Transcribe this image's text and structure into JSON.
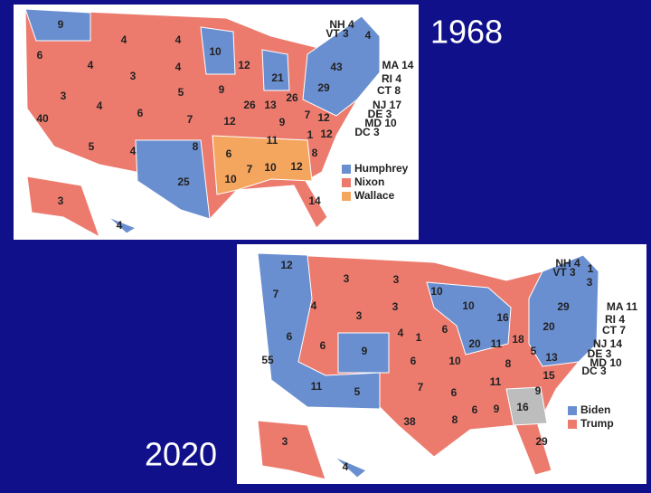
{
  "maps": [
    {
      "title": "1968",
      "legend": [
        {
          "name": "Humphrey",
          "color": "#6a8fd0"
        },
        {
          "name": "Nixon",
          "color": "#ec7b6e"
        },
        {
          "name": "Wallace",
          "color": "#f4a55e"
        }
      ],
      "state_labels": [
        9,
        4,
        4,
        10,
        6,
        4,
        4,
        12,
        3,
        21,
        43,
        4,
        "NH 4",
        "VT 3",
        "MA 14",
        "RI 4",
        "CT 8",
        "NJ 17",
        "DE 3",
        "MD 10",
        "DC 3",
        3,
        5,
        9,
        29,
        26,
        4,
        26,
        13,
        6,
        40,
        7,
        12,
        9,
        7,
        12,
        12,
        1,
        11,
        5,
        4,
        8,
        6,
        8,
        7,
        10,
        12,
        25,
        10,
        14,
        3,
        4
      ]
    },
    {
      "title": "2020",
      "legend": [
        {
          "name": "Biden",
          "color": "#6a8fd0"
        },
        {
          "name": "Trump",
          "color": "#ec7b6e"
        }
      ],
      "state_labels": [
        12,
        3,
        3,
        "NH 4",
        "VT 3",
        1,
        3,
        10,
        7,
        4,
        3,
        10,
        16,
        29,
        "MA 11",
        "RI 4",
        "CT 7",
        3,
        6,
        4,
        1,
        6,
        20,
        20,
        11,
        18,
        "NJ 14",
        "DE 3",
        "MD 10",
        "DC 3",
        6,
        9,
        5,
        13,
        55,
        6,
        10,
        8,
        15,
        11,
        9,
        11,
        5,
        7,
        6,
        6,
        9,
        16,
        38,
        8,
        29,
        3,
        4
      ]
    }
  ]
}
